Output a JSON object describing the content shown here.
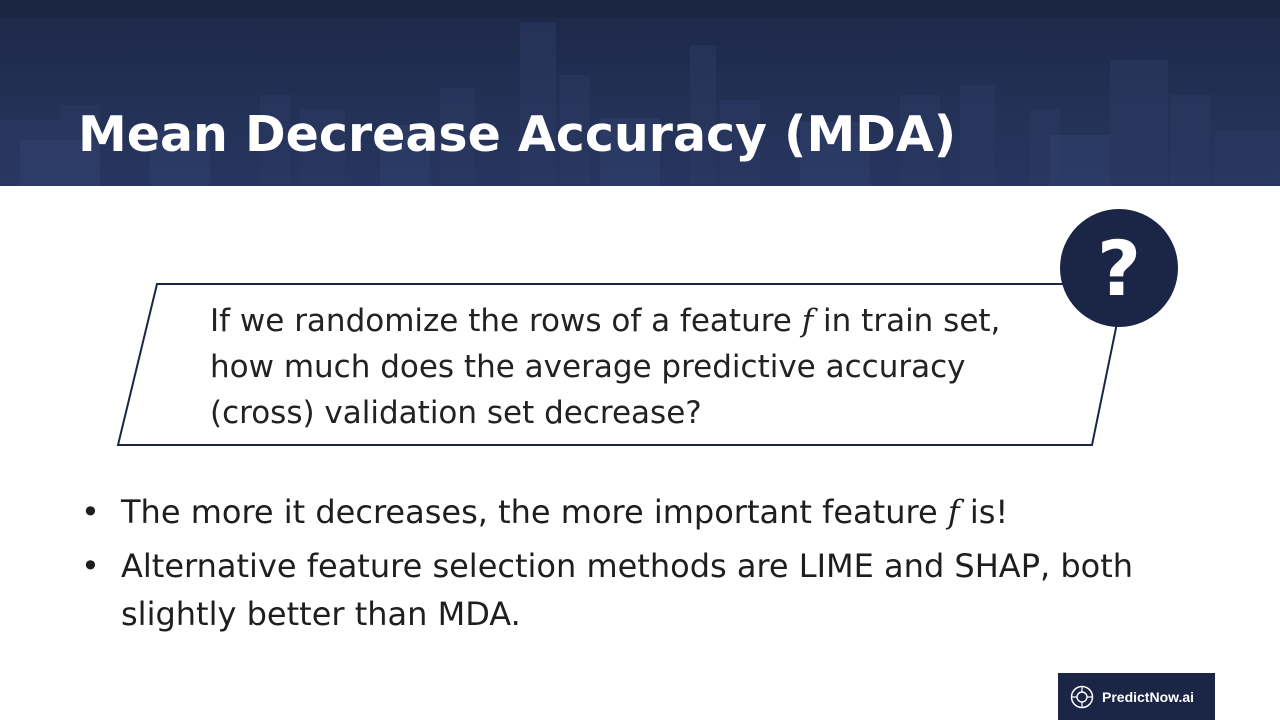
{
  "slide": {
    "title": "Mean Decrease Accuracy (MDA)"
  },
  "question": {
    "line1_before": "If we randomize the rows of a feature ",
    "line1_var": "f",
    "line1_after": " in train set,",
    "line2": "how much does the average predictive accuracy",
    "line3": "(cross) validation set decrease?",
    "icon_glyph": "?"
  },
  "bullets": {
    "marker": "•",
    "item1_before": "The more it decreases, the more important feature ",
    "item1_var": "f",
    "item1_after": " is!",
    "item2": "Alternative feature selection methods are LIME and SHAP, both slightly better than MDA."
  },
  "logo": {
    "text": "PredictNow.ai"
  },
  "colors": {
    "header_bg": "#243156",
    "accent_navy": "#1b2546",
    "text": "#222222",
    "background": "#ffffff"
  }
}
